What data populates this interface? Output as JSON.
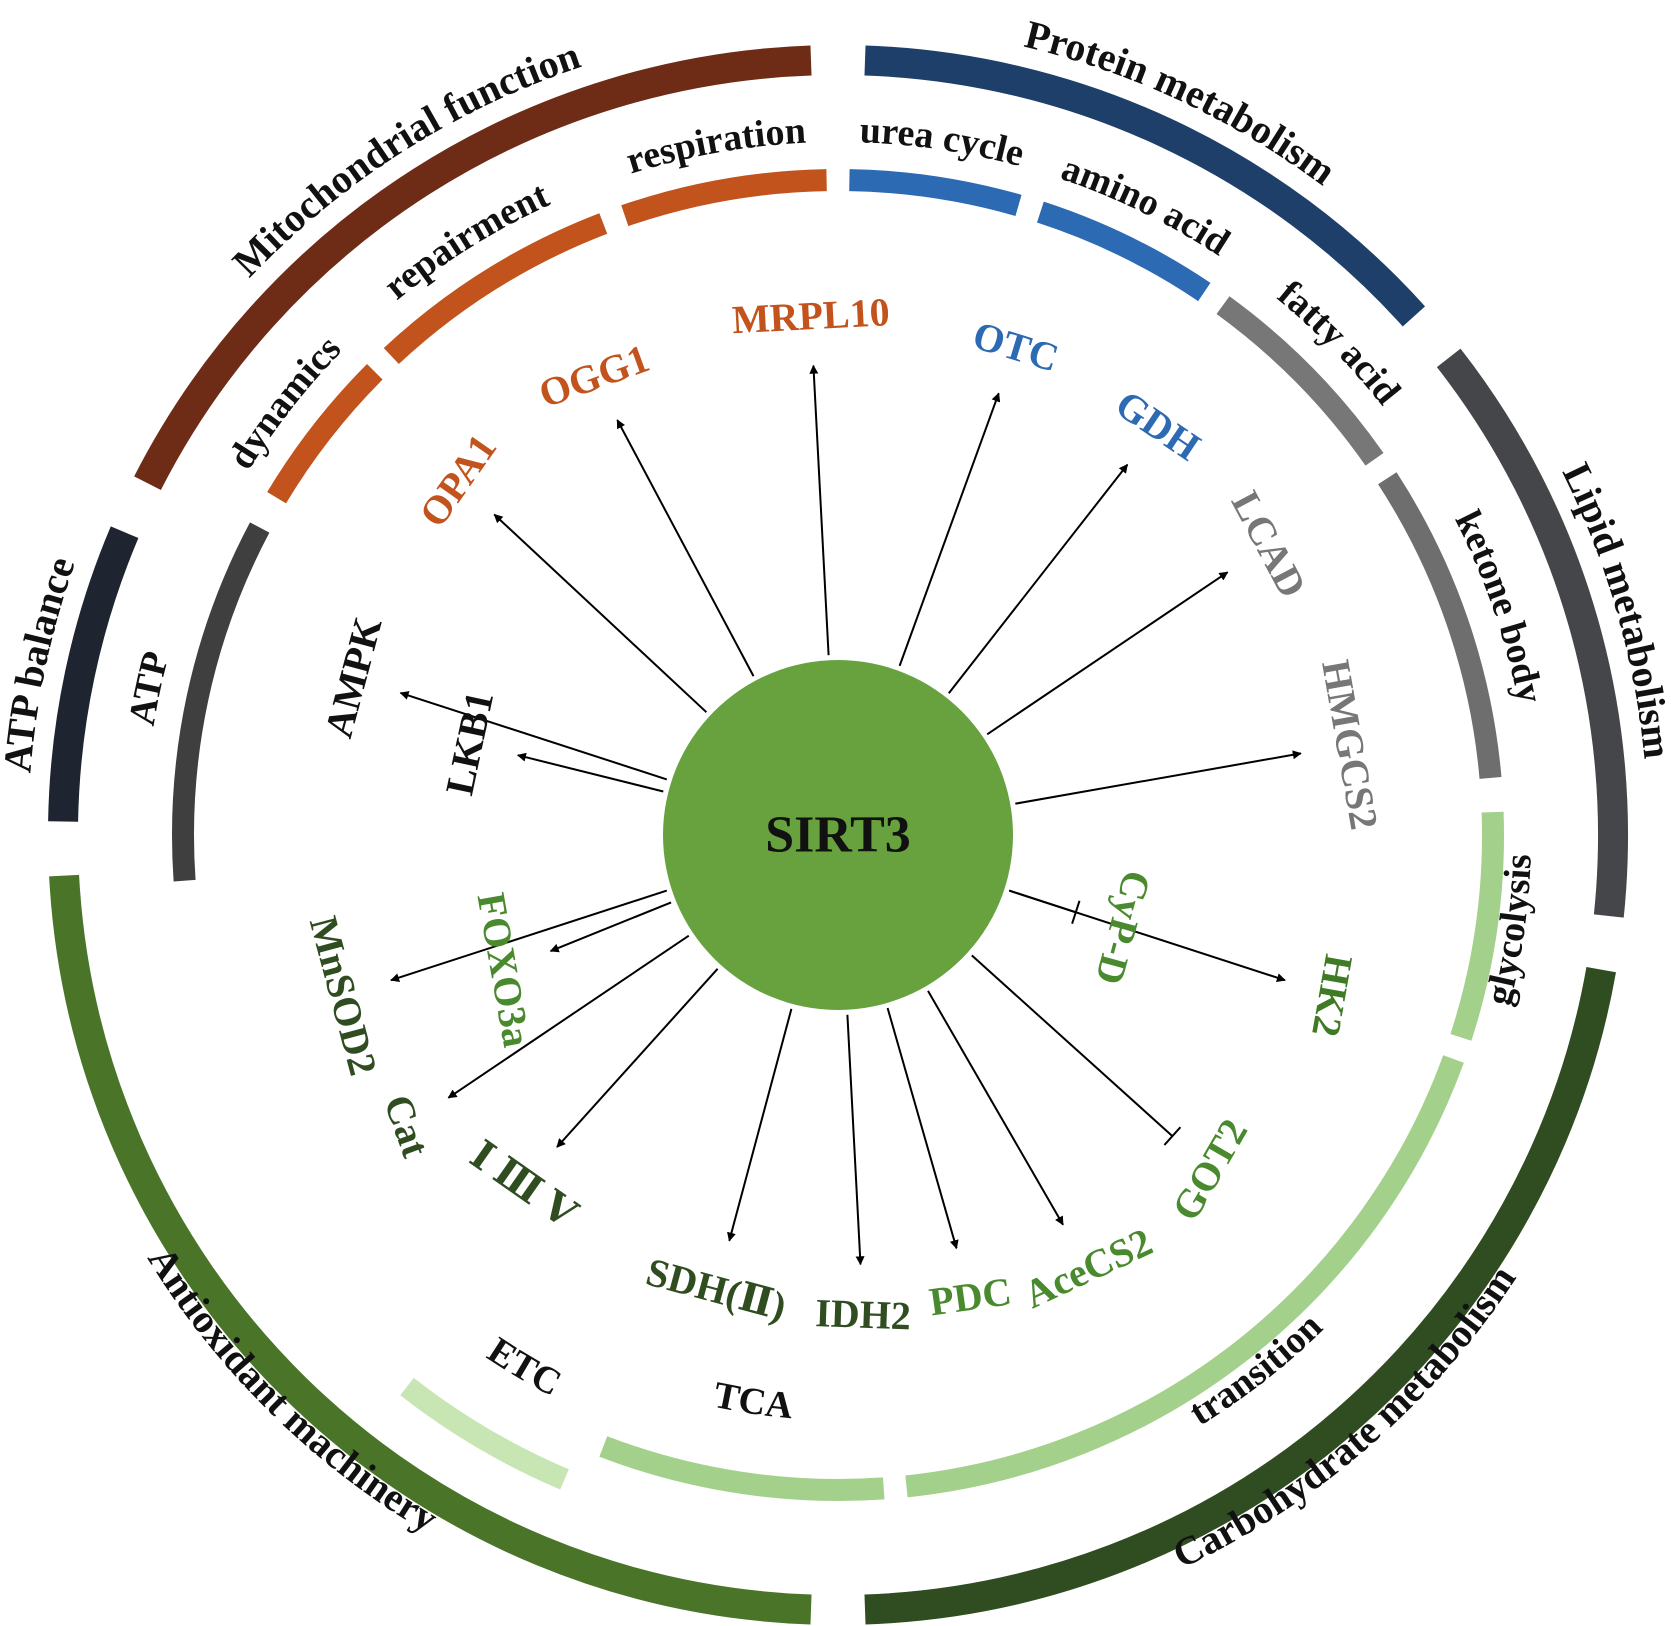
{
  "center": {
    "label": "SIRT3",
    "color": "#67a23f"
  },
  "outer_ring": [
    {
      "label": "Mitochondrial function",
      "color": "#6e2c17"
    },
    {
      "label": "Protein metabolism",
      "color": "#1e3f6a"
    },
    {
      "label": "Lipid metabolism",
      "color": "#444649"
    },
    {
      "label": "Carbohydrate metabolism",
      "color": "#2f4d21"
    },
    {
      "label": "Antioxidant machinery",
      "color": "#4a7428"
    },
    {
      "label": "ATP balance",
      "color": "#1e2530"
    }
  ],
  "inner_ring": [
    {
      "label": "respiration",
      "color": "#c2531c"
    },
    {
      "label": "urea cycle",
      "color": "#2d6ab4"
    },
    {
      "label": "amino acid",
      "color": "#2d6ab4"
    },
    {
      "label": "fatty acid",
      "color": "#777777"
    },
    {
      "label": "ketone body",
      "color": "#6e6e6e"
    },
    {
      "label": "glycolysis",
      "color": "#a3d08b"
    },
    {
      "label": "transition",
      "color": "#a3d08b"
    },
    {
      "label": "TCA",
      "color": "#a3d08b"
    },
    {
      "label": "ETC",
      "color": "#c8e6b3"
    },
    {
      "label": "ATP",
      "color": "#3f3f3f"
    },
    {
      "label": "dynamics",
      "color": "#c2531c"
    },
    {
      "label": "repairment",
      "color": "#c2531c"
    }
  ],
  "targets": [
    {
      "label": "MRPL10",
      "color": "#c2531c",
      "relation": "activate"
    },
    {
      "label": "OTC",
      "color": "#2d6ab4",
      "relation": "activate"
    },
    {
      "label": "GDH",
      "color": "#2d6ab4",
      "relation": "activate"
    },
    {
      "label": "LCAD",
      "color": "#777777",
      "relation": "activate"
    },
    {
      "label": "HMGCS2",
      "color": "#777777",
      "relation": "activate"
    },
    {
      "label": "CyP-D",
      "color": "#4a8a2e",
      "relation": "inhibit"
    },
    {
      "label": "HK2",
      "color": "#3f7a24",
      "relation": "activate"
    },
    {
      "label": "GOT2",
      "color": "#4a8a2e",
      "relation": "inhibit"
    },
    {
      "label": "AceCS2",
      "color": "#4a8a2e",
      "relation": "activate"
    },
    {
      "label": "PDC",
      "color": "#4a8a2e",
      "relation": "activate"
    },
    {
      "label": "IDH2",
      "color": "#2f4d21",
      "relation": "activate"
    },
    {
      "label": "SDH(Ⅱ)",
      "color": "#2f4d21",
      "relation": "activate"
    },
    {
      "label": "Ⅰ Ⅲ Ⅴ",
      "color": "#2f4d21",
      "relation": "activate"
    },
    {
      "label": "FOXO3a",
      "color": "#4a8a2e",
      "relation": "activate"
    },
    {
      "label": "MnSOD2",
      "color": "#2f4d21",
      "relation": "activate"
    },
    {
      "label": "Cat",
      "color": "#2f4d21",
      "relation": "activate"
    },
    {
      "label": "LKB1",
      "color": "#111111",
      "relation": "activate"
    },
    {
      "label": "AMPK",
      "color": "#111111",
      "relation": "activate"
    },
    {
      "label": "OPA1",
      "color": "#c2531c",
      "relation": "activate"
    },
    {
      "label": "OGG1",
      "color": "#c2531c",
      "relation": "activate"
    }
  ]
}
